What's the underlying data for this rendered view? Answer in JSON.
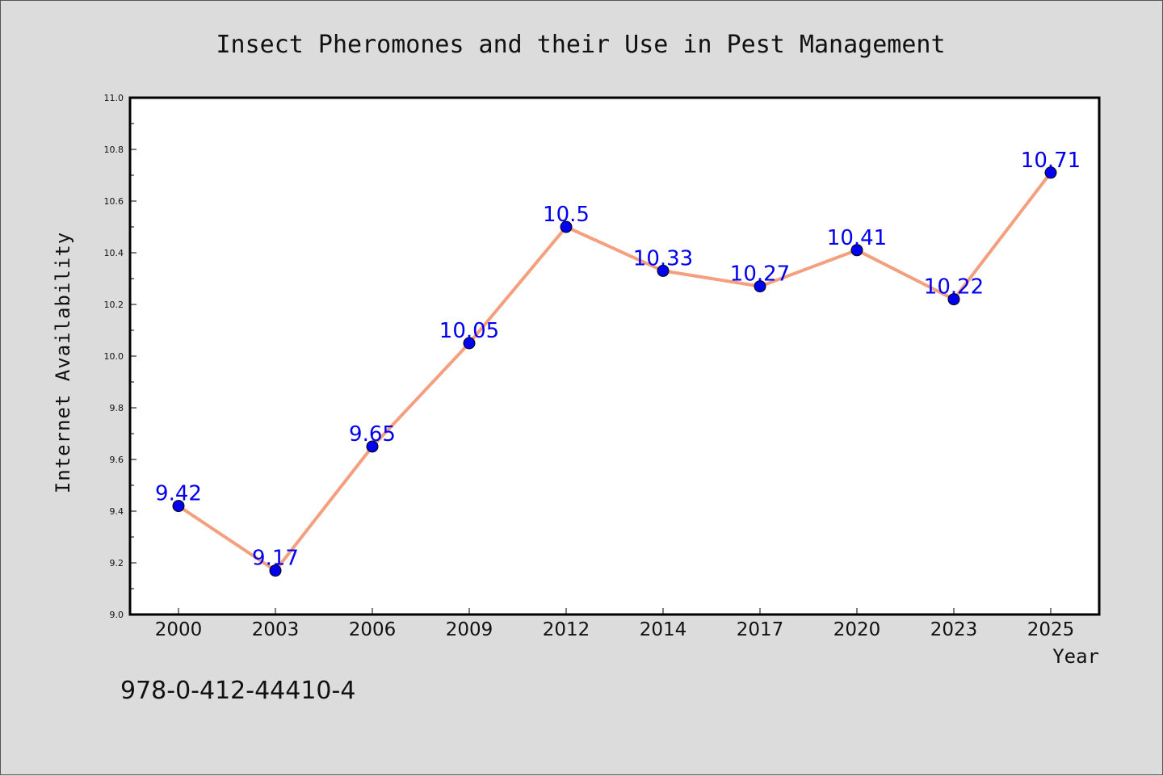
{
  "chart_data": {
    "type": "line",
    "title": "Insect Pheromones and their Use in Pest Management",
    "xlabel": "Year",
    "ylabel": "Internet Availability",
    "categories": [
      "2000",
      "2003",
      "2006",
      "2009",
      "2012",
      "2014",
      "2017",
      "2020",
      "2023",
      "2025"
    ],
    "values": [
      9.42,
      9.17,
      9.65,
      10.05,
      10.5,
      10.33,
      10.27,
      10.41,
      10.22,
      10.71
    ],
    "data_labels": [
      "9.42",
      "9.17",
      "9.65",
      "10.05",
      "10.5",
      "10.33",
      "10.27",
      "10.41",
      "10.22",
      "10.71"
    ],
    "ylim": [
      9.0,
      11.0
    ],
    "y_ticks": [
      "9.0",
      "9.2",
      "9.4",
      "9.6",
      "9.8",
      "10.0",
      "10.2",
      "10.4",
      "10.6",
      "10.8",
      "11.0"
    ],
    "grid": false,
    "legend": "none",
    "colors": {
      "line": "#f4a07f",
      "marker": "#0000ee",
      "data_label": "#0000ee",
      "background": "#dcdcdc",
      "plot_background": "#ffffff"
    }
  },
  "footer": {
    "isbn": "978-0-412-44410-4"
  }
}
